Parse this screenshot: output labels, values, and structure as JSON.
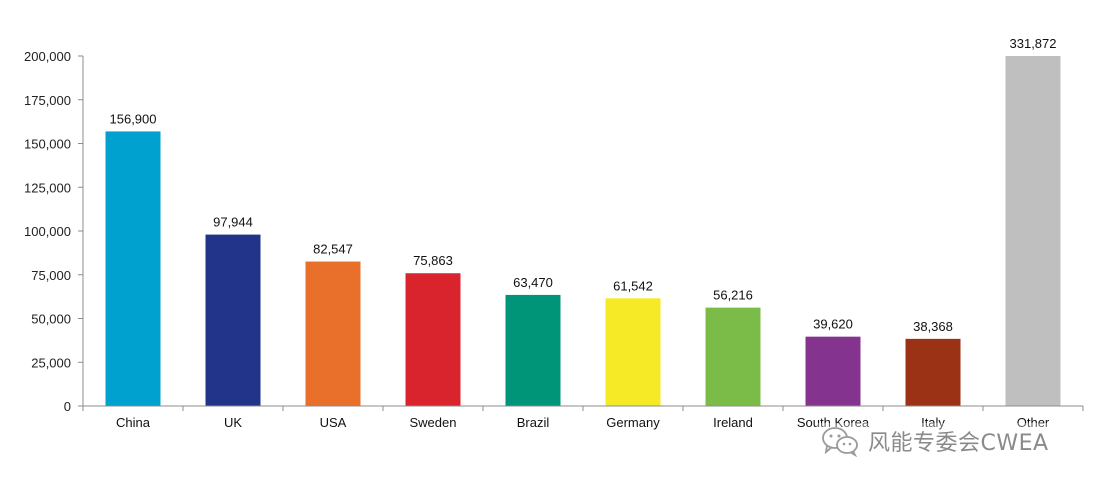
{
  "chart_data": {
    "type": "bar",
    "categories": [
      "China",
      "UK",
      "USA",
      "Sweden",
      "Brazil",
      "Germany",
      "Ireland",
      "South Korea",
      "Italy",
      "Other"
    ],
    "values": [
      156900,
      97944,
      82547,
      75863,
      63470,
      61542,
      56216,
      39620,
      38368,
      331872
    ],
    "value_labels": [
      "156,900",
      "97,944",
      "82,547",
      "75,863",
      "63,470",
      "61,542",
      "56,216",
      "39,620",
      "38,368",
      "331,872"
    ],
    "colors": [
      "#00a1ce",
      "#22338a",
      "#e8702a",
      "#d9232d",
      "#009479",
      "#f6ea26",
      "#7bbc48",
      "#84338f",
      "#9b3115",
      "#bfbfbf"
    ],
    "y_ticks": [
      0,
      25000,
      50000,
      75000,
      100000,
      125000,
      150000,
      175000,
      200000
    ],
    "y_tick_labels": [
      "0",
      "25,000",
      "50,000",
      "75,000",
      "100,000",
      "125,000",
      "150,000",
      "175,000",
      "200,000"
    ],
    "ylim": [
      0,
      200000
    ],
    "clipped_at_ylim": [
      "Other"
    ],
    "grid": false,
    "legend": false,
    "title": "",
    "xlabel": "",
    "ylabel": ""
  },
  "watermark": {
    "text": "风能专委会CWEA",
    "icon": "wechat-icon"
  }
}
